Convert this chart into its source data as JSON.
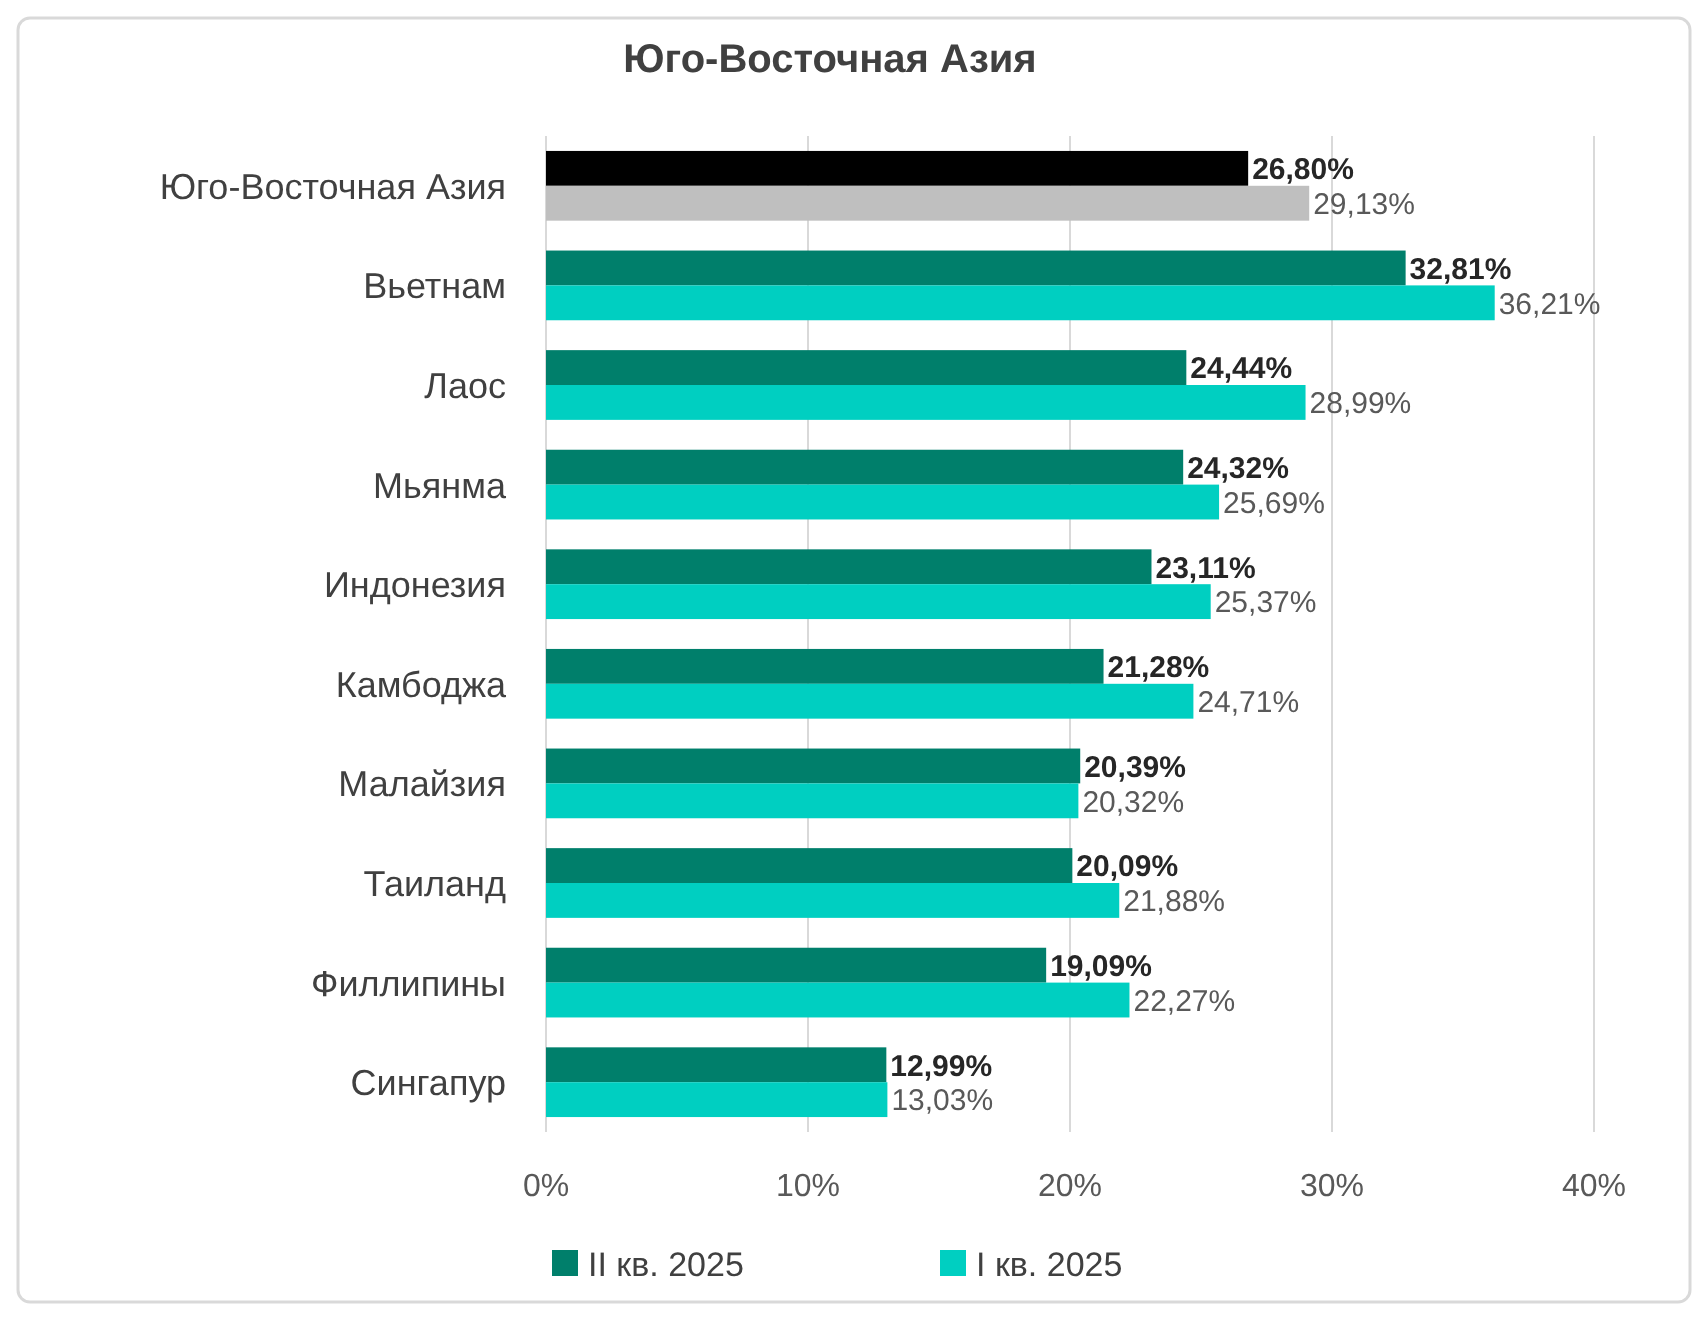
{
  "chart_data": {
    "type": "bar",
    "orientation": "horizontal",
    "title": "Юго-Восточная Азия",
    "categories": [
      "Юго-Восточная Азия",
      "Вьетнам",
      "Лаос",
      "Мьянма",
      "Индонезия",
      "Камбоджа",
      "Малайзия",
      "Таиланд",
      "Филлипины",
      "Сингапур"
    ],
    "series": [
      {
        "name": "II кв. 2025",
        "color": "#007f6b",
        "colors": [
          "#000000",
          "#007f6b",
          "#007f6b",
          "#007f6b",
          "#007f6b",
          "#007f6b",
          "#007f6b",
          "#007f6b",
          "#007f6b",
          "#007f6b"
        ],
        "values": [
          26.8,
          32.81,
          24.44,
          24.32,
          23.11,
          21.28,
          20.39,
          20.09,
          19.09,
          12.99
        ],
        "value_labels": [
          "26,80%",
          "32,81%",
          "24,44%",
          "24,32%",
          "23,11%",
          "21,28%",
          "20,39%",
          "20,09%",
          "19,09%",
          "12,99%"
        ]
      },
      {
        "name": "I кв. 2025",
        "color": "#00cfc1",
        "colors": [
          "#bfbfbf",
          "#00cfc1",
          "#00cfc1",
          "#00cfc1",
          "#00cfc1",
          "#00cfc1",
          "#00cfc1",
          "#00cfc1",
          "#00cfc1",
          "#00cfc1"
        ],
        "values": [
          29.13,
          36.21,
          28.99,
          25.69,
          25.37,
          24.71,
          20.32,
          21.88,
          22.27,
          13.03
        ],
        "value_labels": [
          "29,13%",
          "36,21%",
          "28,99%",
          "25,69%",
          "25,37%",
          "24,71%",
          "20,32%",
          "21,88%",
          "22,27%",
          "13,03%"
        ]
      }
    ],
    "xlim": [
      0,
      40
    ],
    "xticks": [
      {
        "value": 0,
        "label": "0%"
      },
      {
        "value": 10,
        "label": "10%"
      },
      {
        "value": 20,
        "label": "20%"
      },
      {
        "value": 30,
        "label": "30%"
      },
      {
        "value": 40,
        "label": "40%"
      }
    ],
    "grid": "x",
    "legend": "bottom"
  }
}
